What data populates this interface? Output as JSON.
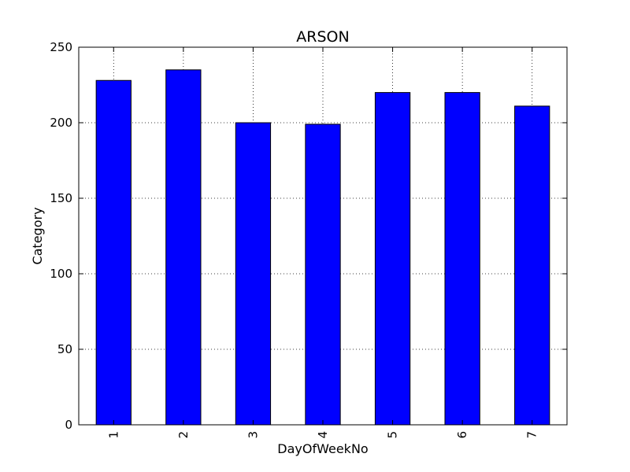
{
  "chart_data": {
    "type": "bar",
    "title": "ARSON",
    "xlabel": "DayOfWeekNo",
    "ylabel": "Category",
    "categories": [
      "1",
      "2",
      "3",
      "4",
      "5",
      "6",
      "7"
    ],
    "values": [
      228,
      235,
      200,
      199,
      220,
      220,
      211
    ],
    "ylim": [
      0,
      250
    ],
    "yticks": [
      0,
      50,
      100,
      150,
      200,
      250
    ],
    "grid": true,
    "legend": "none",
    "bar_color": "#0000ff",
    "edge_color": "#000000"
  }
}
